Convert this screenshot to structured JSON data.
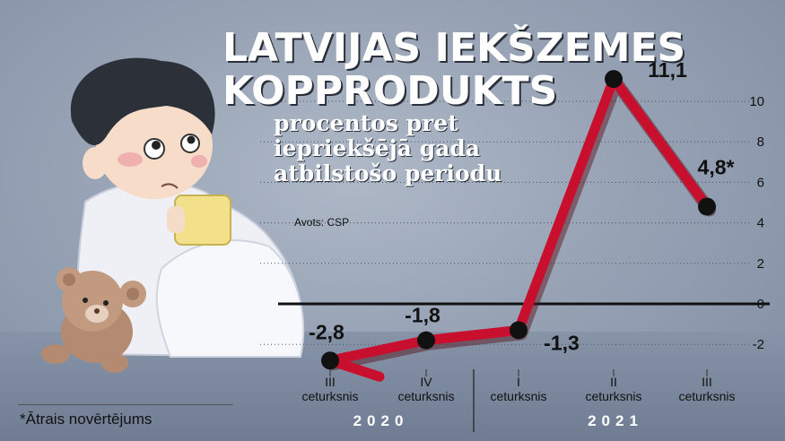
{
  "header": {
    "title_line1": "LATVIJAS IEKŠZEMES",
    "title_line2": "KOPPRODUKTS",
    "subtitle": "procentos pret iepriekšējā gada atbilstošo periodu",
    "source": "Avots: CSP"
  },
  "footnote": "*Ātrais novērtējums",
  "illustration": "sad child wrapped in blanket with teddy bear",
  "colors": {
    "line": "#c8102e",
    "line_shadow": "#5a1a22",
    "marker": "#111111",
    "zero_line": "#111111"
  },
  "chart_data": {
    "type": "line",
    "title": "LATVIJAS IEKŠZEMES KOPPRODUKTS",
    "subtitle": "procentos pret iepriekšējā gada atbilstošo periodu",
    "categories": [
      [
        "III",
        "ceturksnis"
      ],
      [
        "IV",
        "ceturksnis"
      ],
      [
        "I",
        "ceturksnis"
      ],
      [
        "II",
        "ceturksnis"
      ],
      [
        "III",
        "ceturksnis"
      ]
    ],
    "year_groups": [
      {
        "label": "2020",
        "count": 2
      },
      {
        "label": "2021",
        "count": 3
      }
    ],
    "values": [
      -2.8,
      -1.8,
      -1.3,
      11.1,
      4.8
    ],
    "value_labels": [
      "-2,8",
      "-1,8",
      "-1,3",
      "11,1",
      "4,8*"
    ],
    "yticks": [
      -2,
      0,
      2,
      4,
      6,
      8,
      10
    ],
    "ylim": [
      -3.2,
      11.6
    ],
    "grid": "dotted horizontal",
    "legend": "none"
  }
}
